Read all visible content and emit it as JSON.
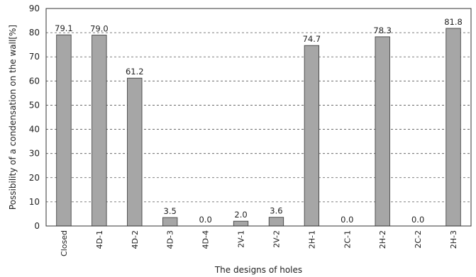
{
  "chart_data": {
    "type": "bar",
    "title": "",
    "xlabel": "The designs of holes",
    "ylabel": "Possibility of a condensation on the wall[%]",
    "ylim": [
      0,
      90
    ],
    "yticks": [
      0,
      10,
      20,
      30,
      40,
      50,
      60,
      70,
      80,
      90
    ],
    "grid": "horizontal dashed",
    "categories": [
      "Closed",
      "4D-1",
      "4D-2",
      "4D-3",
      "4D-4",
      "2V-1",
      "2V-2",
      "2H-1",
      "2C-1",
      "2H-2",
      "2C-2",
      "2H-3"
    ],
    "values": [
      79.1,
      79.0,
      61.2,
      3.5,
      0.0,
      2.0,
      3.6,
      74.7,
      0.0,
      78.3,
      0.0,
      81.8
    ],
    "data_labels": [
      "79.1",
      "79.0",
      "61.2",
      "3.5",
      "0.0",
      "2.0",
      "3.6",
      "74.7",
      "0.0",
      "78.3",
      "0.0",
      "81.8"
    ],
    "colors": {
      "bar": "#a6a6a6",
      "bar_stroke": "#333333",
      "grid": "#555555"
    }
  }
}
